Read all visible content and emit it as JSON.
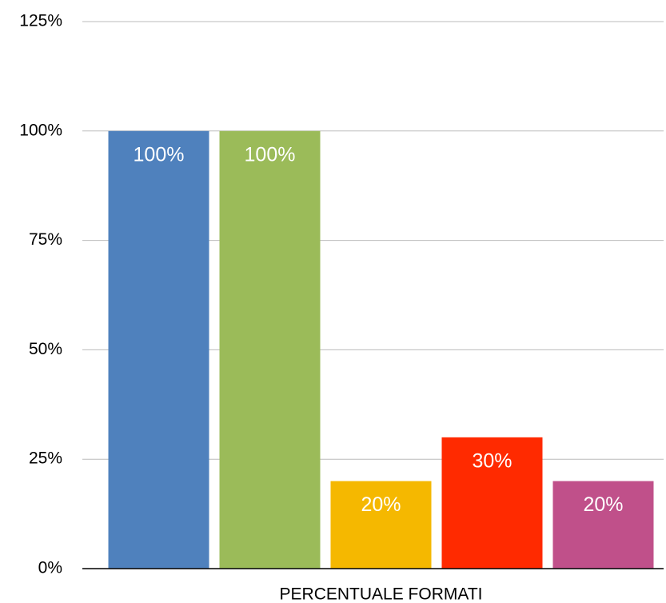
{
  "chart_data": {
    "type": "bar",
    "categories": [
      "PERCENTUALE FORMATI"
    ],
    "series": [
      {
        "color": "#4f81bd",
        "values": [
          100
        ],
        "value_labels": [
          "100%"
        ]
      },
      {
        "color": "#9bbb59",
        "values": [
          100
        ],
        "value_labels": [
          "100%"
        ]
      },
      {
        "color": "#f5b800",
        "values": [
          20
        ],
        "value_labels": [
          "20%"
        ]
      },
      {
        "color": "#ff2a00",
        "values": [
          30
        ],
        "value_labels": [
          "30%"
        ]
      },
      {
        "color": "#c0508a",
        "values": [
          20
        ],
        "value_labels": [
          "20%"
        ]
      }
    ],
    "ylim": [
      0,
      125
    ],
    "yticks": [
      {
        "value": 0,
        "label": "0%"
      },
      {
        "value": 25,
        "label": "25%"
      },
      {
        "value": 50,
        "label": "50%"
      },
      {
        "value": 75,
        "label": "75%"
      },
      {
        "value": 100,
        "label": "100%"
      },
      {
        "value": 125,
        "label": "125%"
      }
    ],
    "grid": true
  }
}
